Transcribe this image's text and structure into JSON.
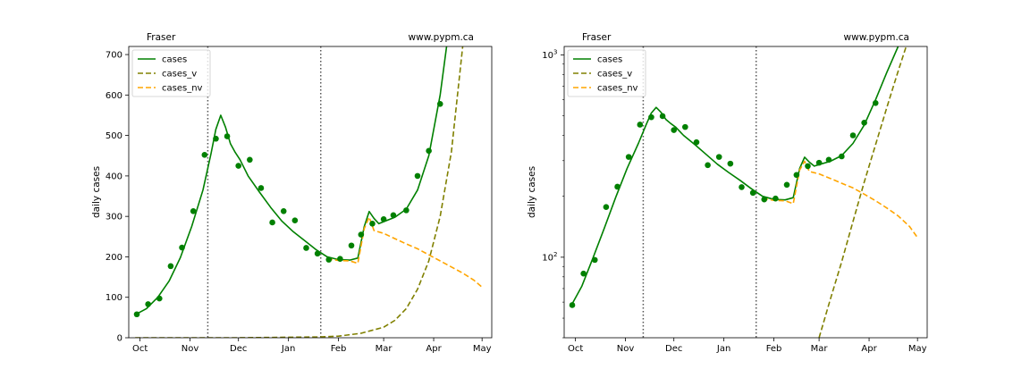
{
  "chart_data": [
    {
      "type": "line",
      "yscale": "linear",
      "title_left": "Fraser",
      "title_right": "www.pypm.ca",
      "ylabel": "daily cases",
      "xlabel": "",
      "xlim": [
        "2020-09-24",
        "2021-05-07"
      ],
      "ylim": [
        0,
        720
      ],
      "xticks": [
        {
          "date": "2020-10-01",
          "label": "Oct"
        },
        {
          "date": "2020-11-01",
          "label": "Nov"
        },
        {
          "date": "2020-12-01",
          "label": "Dec"
        },
        {
          "date": "2021-01-01",
          "label": "Jan"
        },
        {
          "date": "2021-02-01",
          "label": "Feb"
        },
        {
          "date": "2021-03-01",
          "label": "Mar"
        },
        {
          "date": "2021-04-01",
          "label": "Apr"
        },
        {
          "date": "2021-05-01",
          "label": "May"
        }
      ],
      "yticks": [
        {
          "value": 0,
          "label": "0"
        },
        {
          "value": 100,
          "label": "100"
        },
        {
          "value": 200,
          "label": "200"
        },
        {
          "value": 300,
          "label": "300"
        },
        {
          "value": 400,
          "label": "400"
        },
        {
          "value": 500,
          "label": "500"
        },
        {
          "value": 600,
          "label": "600"
        },
        {
          "value": 700,
          "label": "700"
        }
      ],
      "vlines": [
        "2020-11-12",
        "2021-01-21"
      ],
      "legend": {
        "location": "upper-left",
        "entries": [
          "cases",
          "cases_v",
          "cases_nv"
        ]
      },
      "series": [
        {
          "name": "cases",
          "style": "solid",
          "color": "#008000",
          "points": [
            [
              "2020-09-28",
              57
            ],
            [
              "2020-10-05",
              72
            ],
            [
              "2020-10-12",
              100
            ],
            [
              "2020-10-19",
              140
            ],
            [
              "2020-10-26",
              198
            ],
            [
              "2020-11-02",
              275
            ],
            [
              "2020-11-09",
              365
            ],
            [
              "2020-11-14",
              455
            ],
            [
              "2020-11-17",
              515
            ],
            [
              "2020-11-20",
              550
            ],
            [
              "2020-11-23",
              520
            ],
            [
              "2020-11-26",
              480
            ],
            [
              "2020-11-29",
              458
            ],
            [
              "2020-12-02",
              440
            ],
            [
              "2020-12-07",
              400
            ],
            [
              "2020-12-14",
              360
            ],
            [
              "2020-12-21",
              322
            ],
            [
              "2020-12-28",
              288
            ],
            [
              "2021-01-04",
              262
            ],
            [
              "2021-01-11",
              240
            ],
            [
              "2021-01-18",
              218
            ],
            [
              "2021-01-25",
              200
            ],
            [
              "2021-02-01",
              193
            ],
            [
              "2021-02-08",
              192
            ],
            [
              "2021-02-13",
              197
            ],
            [
              "2021-02-17",
              275
            ],
            [
              "2021-02-20",
              312
            ],
            [
              "2021-02-23",
              295
            ],
            [
              "2021-02-26",
              282
            ],
            [
              "2021-03-01",
              287
            ],
            [
              "2021-03-08",
              298
            ],
            [
              "2021-03-15",
              318
            ],
            [
              "2021-03-22",
              365
            ],
            [
              "2021-03-29",
              450
            ],
            [
              "2021-04-05",
              600
            ],
            [
              "2021-04-09",
              720
            ]
          ]
        },
        {
          "name": "cases_v",
          "style": "dashed",
          "color": "#808000",
          "points": [
            [
              "2020-09-28",
              0
            ],
            [
              "2020-12-01",
              0
            ],
            [
              "2021-01-20",
              2
            ],
            [
              "2021-02-01",
              4
            ],
            [
              "2021-02-15",
              11
            ],
            [
              "2021-03-01",
              26
            ],
            [
              "2021-03-08",
              43
            ],
            [
              "2021-03-15",
              72
            ],
            [
              "2021-03-22",
              120
            ],
            [
              "2021-03-29",
              190
            ],
            [
              "2021-04-05",
              300
            ],
            [
              "2021-04-12",
              460
            ],
            [
              "2021-04-19",
              720
            ]
          ]
        },
        {
          "name": "cases_nv",
          "style": "dashed",
          "color": "#ffa500",
          "points": [
            [
              "2021-01-25",
              195
            ],
            [
              "2021-02-01",
              191
            ],
            [
              "2021-02-08",
              190
            ],
            [
              "2021-02-13",
              184
            ],
            [
              "2021-02-17",
              270
            ],
            [
              "2021-02-20",
              298
            ],
            [
              "2021-02-23",
              265
            ],
            [
              "2021-03-01",
              258
            ],
            [
              "2021-03-08",
              245
            ],
            [
              "2021-03-15",
              232
            ],
            [
              "2021-03-22",
              220
            ],
            [
              "2021-03-29",
              205
            ],
            [
              "2021-04-05",
              190
            ],
            [
              "2021-04-12",
              175
            ],
            [
              "2021-04-19",
              160
            ],
            [
              "2021-04-26",
              142
            ],
            [
              "2021-05-01",
              125
            ]
          ]
        }
      ],
      "scatter": {
        "name": "observed",
        "color": "#008000",
        "points": [
          [
            "2020-09-29",
            58
          ],
          [
            "2020-10-06",
            83
          ],
          [
            "2020-10-13",
            97
          ],
          [
            "2020-10-20",
            177
          ],
          [
            "2020-10-27",
            223
          ],
          [
            "2020-11-03",
            313
          ],
          [
            "2020-11-10",
            452
          ],
          [
            "2020-11-17",
            492
          ],
          [
            "2020-11-24",
            498
          ],
          [
            "2020-12-01",
            425
          ],
          [
            "2020-12-08",
            440
          ],
          [
            "2020-12-15",
            370
          ],
          [
            "2020-12-22",
            285
          ],
          [
            "2020-12-29",
            313
          ],
          [
            "2021-01-05",
            290
          ],
          [
            "2021-01-12",
            222
          ],
          [
            "2021-01-19",
            208
          ],
          [
            "2021-01-26",
            193
          ],
          [
            "2021-02-02",
            195
          ],
          [
            "2021-02-09",
            228
          ],
          [
            "2021-02-15",
            255
          ],
          [
            "2021-02-22",
            282
          ],
          [
            "2021-02-29",
            293
          ],
          [
            "2021-03-07",
            303
          ],
          [
            "2021-03-15",
            315
          ],
          [
            "2021-03-22",
            400
          ],
          [
            "2021-03-29",
            462
          ],
          [
            "2021-04-05",
            578
          ]
        ]
      }
    },
    {
      "type": "line",
      "yscale": "log",
      "title_left": "Fraser",
      "title_right": "www.pypm.ca",
      "ylabel": "daily cases",
      "xlabel": "",
      "xlim": [
        "2020-09-24",
        "2021-05-07"
      ],
      "ylim": [
        40,
        1100
      ],
      "xticks": [
        {
          "date": "2020-10-01",
          "label": "Oct"
        },
        {
          "date": "2020-11-01",
          "label": "Nov"
        },
        {
          "date": "2020-12-01",
          "label": "Dec"
        },
        {
          "date": "2021-01-01",
          "label": "Jan"
        },
        {
          "date": "2021-02-01",
          "label": "Feb"
        },
        {
          "date": "2021-03-01",
          "label": "Mar"
        },
        {
          "date": "2021-04-01",
          "label": "Apr"
        },
        {
          "date": "2021-05-01",
          "label": "May"
        }
      ],
      "yticks": [
        {
          "value": 100,
          "label": "10",
          "sup": "2"
        },
        {
          "value": 1000,
          "label": "10",
          "sup": "3"
        }
      ],
      "vlines": [
        "2020-11-12",
        "2021-01-21"
      ],
      "legend": {
        "location": "upper-left",
        "entries": [
          "cases",
          "cases_v",
          "cases_nv"
        ]
      },
      "series": [
        {
          "name": "cases",
          "style": "solid",
          "color": "#008000",
          "points": [
            [
              "2020-09-28",
              57
            ],
            [
              "2020-10-05",
              72
            ],
            [
              "2020-10-12",
              100
            ],
            [
              "2020-10-19",
              140
            ],
            [
              "2020-10-26",
              198
            ],
            [
              "2020-11-02",
              275
            ],
            [
              "2020-11-09",
              365
            ],
            [
              "2020-11-14",
              455
            ],
            [
              "2020-11-17",
              515
            ],
            [
              "2020-11-20",
              550
            ],
            [
              "2020-11-23",
              520
            ],
            [
              "2020-11-26",
              480
            ],
            [
              "2020-11-29",
              458
            ],
            [
              "2020-12-02",
              440
            ],
            [
              "2020-12-07",
              400
            ],
            [
              "2020-12-14",
              360
            ],
            [
              "2020-12-21",
              322
            ],
            [
              "2020-12-28",
              288
            ],
            [
              "2021-01-04",
              262
            ],
            [
              "2021-01-11",
              240
            ],
            [
              "2021-01-18",
              218
            ],
            [
              "2021-01-25",
              200
            ],
            [
              "2021-02-01",
              193
            ],
            [
              "2021-02-08",
              192
            ],
            [
              "2021-02-13",
              197
            ],
            [
              "2021-02-17",
              275
            ],
            [
              "2021-02-20",
              312
            ],
            [
              "2021-02-23",
              295
            ],
            [
              "2021-02-26",
              282
            ],
            [
              "2021-03-01",
              287
            ],
            [
              "2021-03-08",
              298
            ],
            [
              "2021-03-15",
              318
            ],
            [
              "2021-03-22",
              365
            ],
            [
              "2021-03-29",
              450
            ],
            [
              "2021-04-05",
              600
            ],
            [
              "2021-04-12",
              820
            ],
            [
              "2021-04-19",
              1100
            ]
          ]
        },
        {
          "name": "cases_v",
          "style": "dashed",
          "color": "#808000",
          "points": [
            [
              "2021-03-01",
              40
            ],
            [
              "2021-03-08",
              62
            ],
            [
              "2021-03-15",
              95
            ],
            [
              "2021-03-22",
              150
            ],
            [
              "2021-03-29",
              235
            ],
            [
              "2021-04-05",
              360
            ],
            [
              "2021-04-12",
              550
            ],
            [
              "2021-04-19",
              830
            ],
            [
              "2021-04-24",
              1100
            ]
          ]
        },
        {
          "name": "cases_nv",
          "style": "dashed",
          "color": "#ffa500",
          "points": [
            [
              "2021-01-25",
              195
            ],
            [
              "2021-02-01",
              191
            ],
            [
              "2021-02-08",
              190
            ],
            [
              "2021-02-13",
              184
            ],
            [
              "2021-02-17",
              270
            ],
            [
              "2021-02-20",
              298
            ],
            [
              "2021-02-23",
              265
            ],
            [
              "2021-03-01",
              258
            ],
            [
              "2021-03-08",
              245
            ],
            [
              "2021-03-15",
              232
            ],
            [
              "2021-03-22",
              220
            ],
            [
              "2021-03-29",
              205
            ],
            [
              "2021-04-05",
              190
            ],
            [
              "2021-04-12",
              175
            ],
            [
              "2021-04-19",
              160
            ],
            [
              "2021-04-26",
              142
            ],
            [
              "2021-05-01",
              125
            ]
          ]
        }
      ],
      "scatter": {
        "name": "observed",
        "color": "#008000",
        "points": [
          [
            "2020-09-29",
            58
          ],
          [
            "2020-10-06",
            83
          ],
          [
            "2020-10-13",
            97
          ],
          [
            "2020-10-20",
            177
          ],
          [
            "2020-10-27",
            223
          ],
          [
            "2020-11-03",
            313
          ],
          [
            "2020-11-10",
            452
          ],
          [
            "2020-11-17",
            492
          ],
          [
            "2020-11-24",
            498
          ],
          [
            "2020-12-01",
            425
          ],
          [
            "2020-12-08",
            440
          ],
          [
            "2020-12-15",
            370
          ],
          [
            "2020-12-22",
            285
          ],
          [
            "2020-12-29",
            313
          ],
          [
            "2021-01-05",
            290
          ],
          [
            "2021-01-12",
            222
          ],
          [
            "2021-01-19",
            208
          ],
          [
            "2021-01-26",
            193
          ],
          [
            "2021-02-02",
            195
          ],
          [
            "2021-02-09",
            228
          ],
          [
            "2021-02-15",
            255
          ],
          [
            "2021-02-22",
            282
          ],
          [
            "2021-02-29",
            293
          ],
          [
            "2021-03-07",
            303
          ],
          [
            "2021-03-15",
            315
          ],
          [
            "2021-03-22",
            400
          ],
          [
            "2021-03-29",
            462
          ],
          [
            "2021-04-05",
            578
          ]
        ]
      }
    }
  ]
}
